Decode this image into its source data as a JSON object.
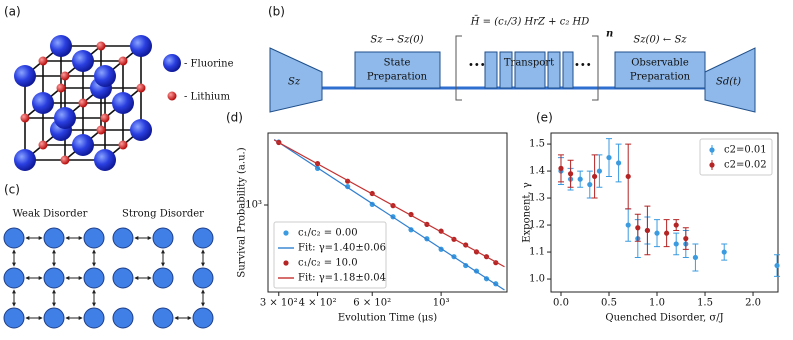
{
  "panel_labels": [
    "(a)",
    "(b)",
    "(c)",
    "(d)",
    "(e)"
  ],
  "crystal": {
    "legend": [
      "- Fluorine",
      "- Lithium"
    ]
  },
  "protocol": {
    "initial": "Sz",
    "state_rule": "Sz → Sz(0)",
    "state_box": [
      "State",
      "Preparation"
    ],
    "hamiltonian": "H̄ = (c₁/3) HrZ + c₂ HD",
    "repeat": "n",
    "transport_box": "Transport",
    "observable_rule": "Sz(0) ← Sz",
    "observable_box": [
      "Observable",
      "Preparation"
    ],
    "final": "Sd(t)"
  },
  "disorder": {
    "weak": "Weak Disorder",
    "strong": "Strong Disorder"
  },
  "chart_data": [
    {
      "type": "scatter",
      "xlabel": "Evolution Time (μs)",
      "ylabel": "Survival Probability (a.u.)",
      "xscale": "log",
      "yscale": "log",
      "xlim": [
        277,
        1630
      ],
      "ylim": [
        251,
        3140
      ],
      "xticks": [
        {
          "value": 300,
          "label": "3 × 10²"
        },
        {
          "value": 400,
          "label": "4 × 10²"
        },
        {
          "value": 600,
          "label": "6 × 10²"
        },
        {
          "value": 1000,
          "label": "10³"
        }
      ],
      "yticks": [
        {
          "value": 1000,
          "label": "10³"
        }
      ],
      "legend": "lower left",
      "series": [
        {
          "name": "c₁/c₂ = 0.00",
          "color": "#3a9be0",
          "style": "points",
          "x": [
            300,
            400,
            500,
            600,
            700,
            800,
            900,
            1000,
            1100,
            1200,
            1300,
            1400,
            1500
          ],
          "values": [
            2720,
            1790,
            1340,
            1010,
            830,
            675,
            585,
            495,
            440,
            382,
            350,
            310,
            286
          ]
        },
        {
          "name": "Fit: γ=1.40±0.06",
          "color": "#2f7fd0",
          "style": "line",
          "x": [
            290,
            1600
          ],
          "values": [
            2830,
            259
          ]
        },
        {
          "name": "c₁/c₂ = 10.0",
          "color": "#b52424",
          "style": "points",
          "x": [
            300,
            400,
            500,
            600,
            700,
            800,
            900,
            1000,
            1100,
            1200,
            1300,
            1400,
            1500
          ],
          "values": [
            2700,
            1930,
            1460,
            1200,
            990,
            860,
            735,
            660,
            580,
            530,
            475,
            440,
            400
          ]
        },
        {
          "name": "Fit: γ=1.18±0.04",
          "color": "#c43030",
          "style": "line",
          "x": [
            290,
            1600
          ],
          "values": [
            2811,
            375
          ]
        }
      ]
    },
    {
      "type": "errorbar",
      "xlabel": "Quenched Disorder, σ/J",
      "ylabel": "Exponent, γ",
      "xlim": [
        -0.104,
        2.26
      ],
      "ylim": [
        0.952,
        1.541
      ],
      "xticks": [
        {
          "value": 0,
          "label": "0.0"
        },
        0.5,
        {
          "value": 1,
          "label": "1.0"
        },
        1.5,
        {
          "value": 2,
          "label": "2.0"
        }
      ],
      "yticks": [
        {
          "value": 1,
          "label": "1.0"
        },
        1.1,
        1.2,
        1.3,
        1.4,
        1.5
      ],
      "legend": "upper right",
      "series": [
        {
          "name": "c2=0.01",
          "color": "#3a9be0",
          "x": [
            0.0,
            0.1,
            0.2,
            0.3,
            0.4,
            0.5,
            0.6,
            0.7,
            0.8,
            0.9,
            1.0,
            1.2,
            1.3,
            1.4,
            1.7,
            2.25
          ],
          "values": [
            1.4,
            1.37,
            1.37,
            1.35,
            1.4,
            1.45,
            1.43,
            1.2,
            1.15,
            1.18,
            1.17,
            1.13,
            1.13,
            1.08,
            1.1,
            1.05
          ],
          "errors": [
            0.05,
            0.04,
            0.03,
            0.05,
            0.06,
            0.07,
            0.07,
            0.06,
            0.07,
            0.05,
            0.05,
            0.04,
            0.05,
            0.05,
            0.03,
            0.04
          ]
        },
        {
          "name": "c2=0.02",
          "color": "#b52424",
          "x": [
            0.0,
            0.1,
            0.35,
            0.7,
            0.8,
            0.9,
            1.1,
            1.2,
            1.3
          ],
          "values": [
            1.41,
            1.39,
            1.38,
            1.38,
            1.19,
            1.18,
            1.17,
            1.2,
            1.15
          ],
          "errors": [
            0.05,
            0.05,
            0.08,
            0.12,
            0.05,
            0.09,
            0.05,
            0.02,
            0.04
          ]
        }
      ]
    }
  ]
}
